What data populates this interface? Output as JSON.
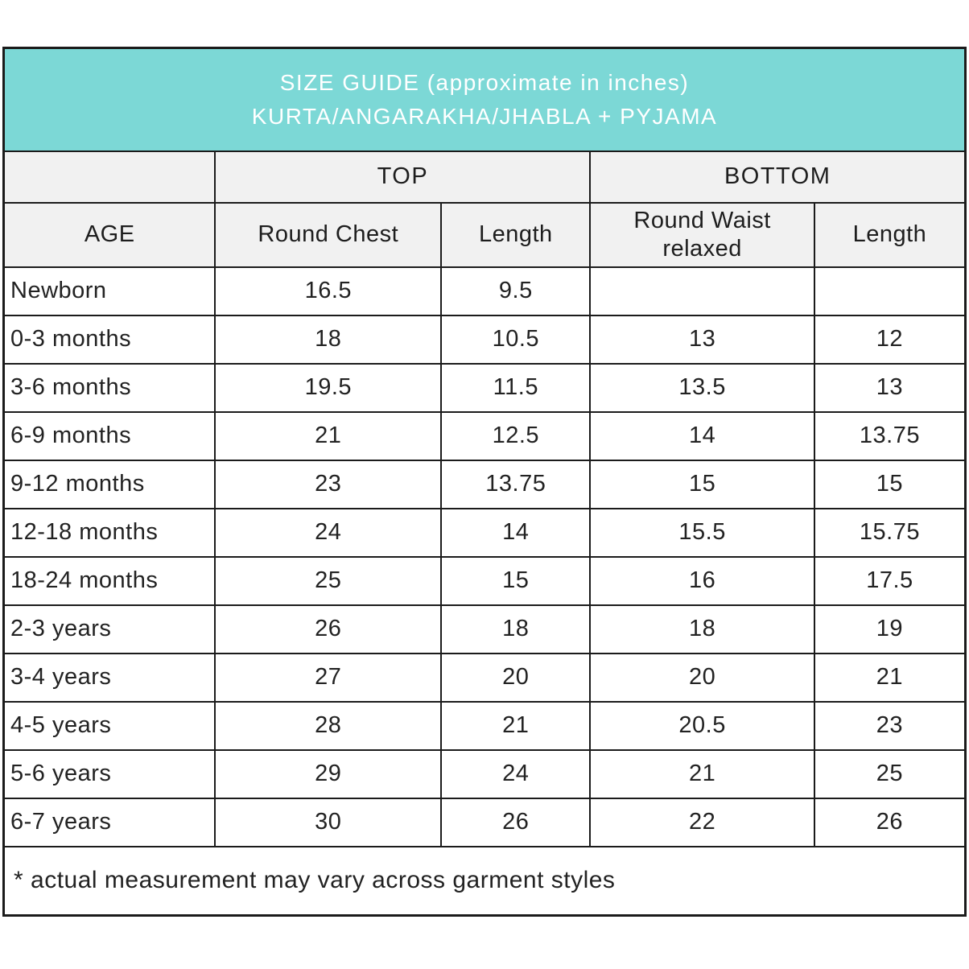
{
  "chart_data": {
    "type": "table",
    "title": "SIZE GUIDE (approximate in inches)",
    "subtitle": "KURTA/ANGARAKHA/JHABLA + PYJAMA",
    "column_groups": [
      {
        "label": "",
        "span": 1
      },
      {
        "label": "TOP",
        "span": 2
      },
      {
        "label": "BOTTOM",
        "span": 2
      }
    ],
    "columns": [
      "AGE",
      "Round Chest",
      "Length",
      "Round Waist relaxed",
      "Length"
    ],
    "rows": [
      [
        "Newborn",
        "16.5",
        "9.5",
        "",
        ""
      ],
      [
        "0-3 months",
        "18",
        "10.5",
        "13",
        "12"
      ],
      [
        "3-6 months",
        "19.5",
        "11.5",
        "13.5",
        "13"
      ],
      [
        "6-9 months",
        "21",
        "12.5",
        "14",
        "13.75"
      ],
      [
        "9-12 months",
        "23",
        "13.75",
        "15",
        "15"
      ],
      [
        "12-18 months",
        "24",
        "14",
        "15.5",
        "15.75"
      ],
      [
        "18-24 months",
        "25",
        "15",
        "16",
        "17.5"
      ],
      [
        "2-3 years",
        "26",
        "18",
        "18",
        "19"
      ],
      [
        "3-4 years",
        "27",
        "20",
        "20",
        "21"
      ],
      [
        "4-5 years",
        "28",
        "21",
        "20.5",
        "23"
      ],
      [
        "5-6 years",
        "29",
        "24",
        "21",
        "25"
      ],
      [
        "6-7 years",
        "30",
        "26",
        "22",
        "26"
      ]
    ],
    "footnote": "* actual measurement may vary across garment styles",
    "layout": {
      "column_widths_pct": [
        22.0,
        23.5,
        15.5,
        23.3,
        15.7
      ]
    }
  },
  "colors": {
    "title_bg": "#7cd8d6",
    "title_text": "#ffffff",
    "header_bg": "#f1f1f1",
    "row_bg": "#ffffff",
    "border": "#1b1b1b",
    "text": "#1d1d1d"
  }
}
